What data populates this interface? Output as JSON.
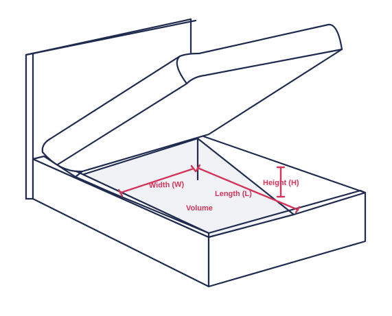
{
  "labels": {
    "width": "Width (W)",
    "length": "Length (L)",
    "height": "Height (H)",
    "volume": "Volume"
  },
  "colors": {
    "outline": "#1f2a4f",
    "accent": "#d6335a",
    "floor": "#f1f2f5"
  }
}
